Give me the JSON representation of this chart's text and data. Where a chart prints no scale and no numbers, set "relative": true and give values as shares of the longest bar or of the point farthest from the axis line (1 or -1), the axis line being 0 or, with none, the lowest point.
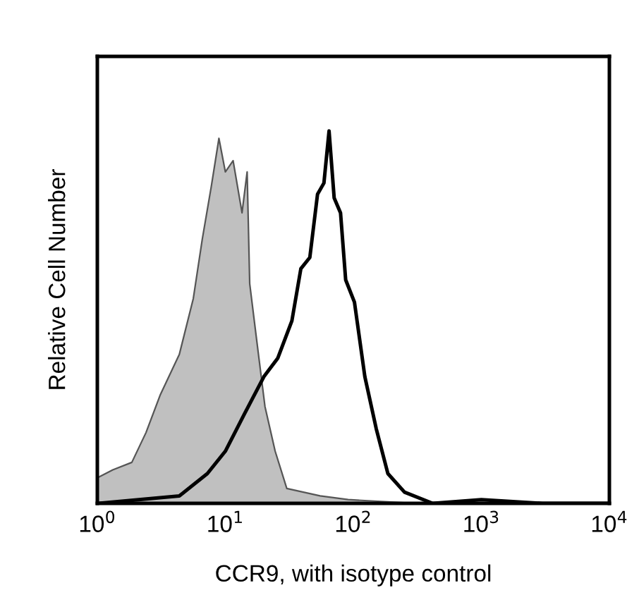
{
  "chart_data": {
    "type": "area",
    "xlabel": "CCR9, with isotype control",
    "ylabel": "Relative Cell Number",
    "relative": true,
    "log": "x",
    "xlim": [
      1,
      10000
    ],
    "xticks": [
      {
        "value": 1,
        "label": "10$^{0}$"
      },
      {
        "value": 10,
        "label": "10$^{1}$"
      },
      {
        "value": 100,
        "label": "10$^{2}$"
      },
      {
        "value": 1000,
        "label": "10$^{3}$"
      },
      {
        "value": 10000,
        "label": "10$^{4}$"
      }
    ],
    "grid": false,
    "legend": false,
    "series": [
      {
        "color": "#c0c0c0",
        "x": [
          1.02,
          1.32,
          1.86,
          2.4,
          3.09,
          4.37,
          5.62,
          6.61,
          7.76,
          8.91,
          10,
          11.5,
          13.5,
          14.8,
          15.5,
          17.4,
          20.4,
          24.5,
          30.2,
          55,
          91,
          316,
          10000
        ],
        "values": [
          0.07,
          0.09,
          0.11,
          0.19,
          0.29,
          0.4,
          0.55,
          0.71,
          0.85,
          0.98,
          0.89,
          0.92,
          0.78,
          0.89,
          0.59,
          0.45,
          0.26,
          0.14,
          0.04,
          0.02,
          0.01,
          0,
          0
        ]
      },
      {
        "type": "line",
        "color": "#000000",
        "x": [
          1.02,
          4.37,
          7.24,
          10,
          14.1,
          20,
          25.7,
          33.1,
          38.9,
          45.7,
          52.5,
          58.9,
          64.6,
          70.8,
          79.4,
          87.1,
          102,
          123,
          151,
          186,
          251,
          417,
          1000,
          3000,
          10000
        ],
        "values": [
          0,
          0.02,
          0.08,
          0.14,
          0.24,
          0.34,
          0.39,
          0.49,
          0.63,
          0.66,
          0.83,
          0.86,
          1,
          0.82,
          0.78,
          0.6,
          0.54,
          0.34,
          0.2,
          0.08,
          0.03,
          0,
          0.01,
          0,
          0
        ]
      }
    ]
  }
}
